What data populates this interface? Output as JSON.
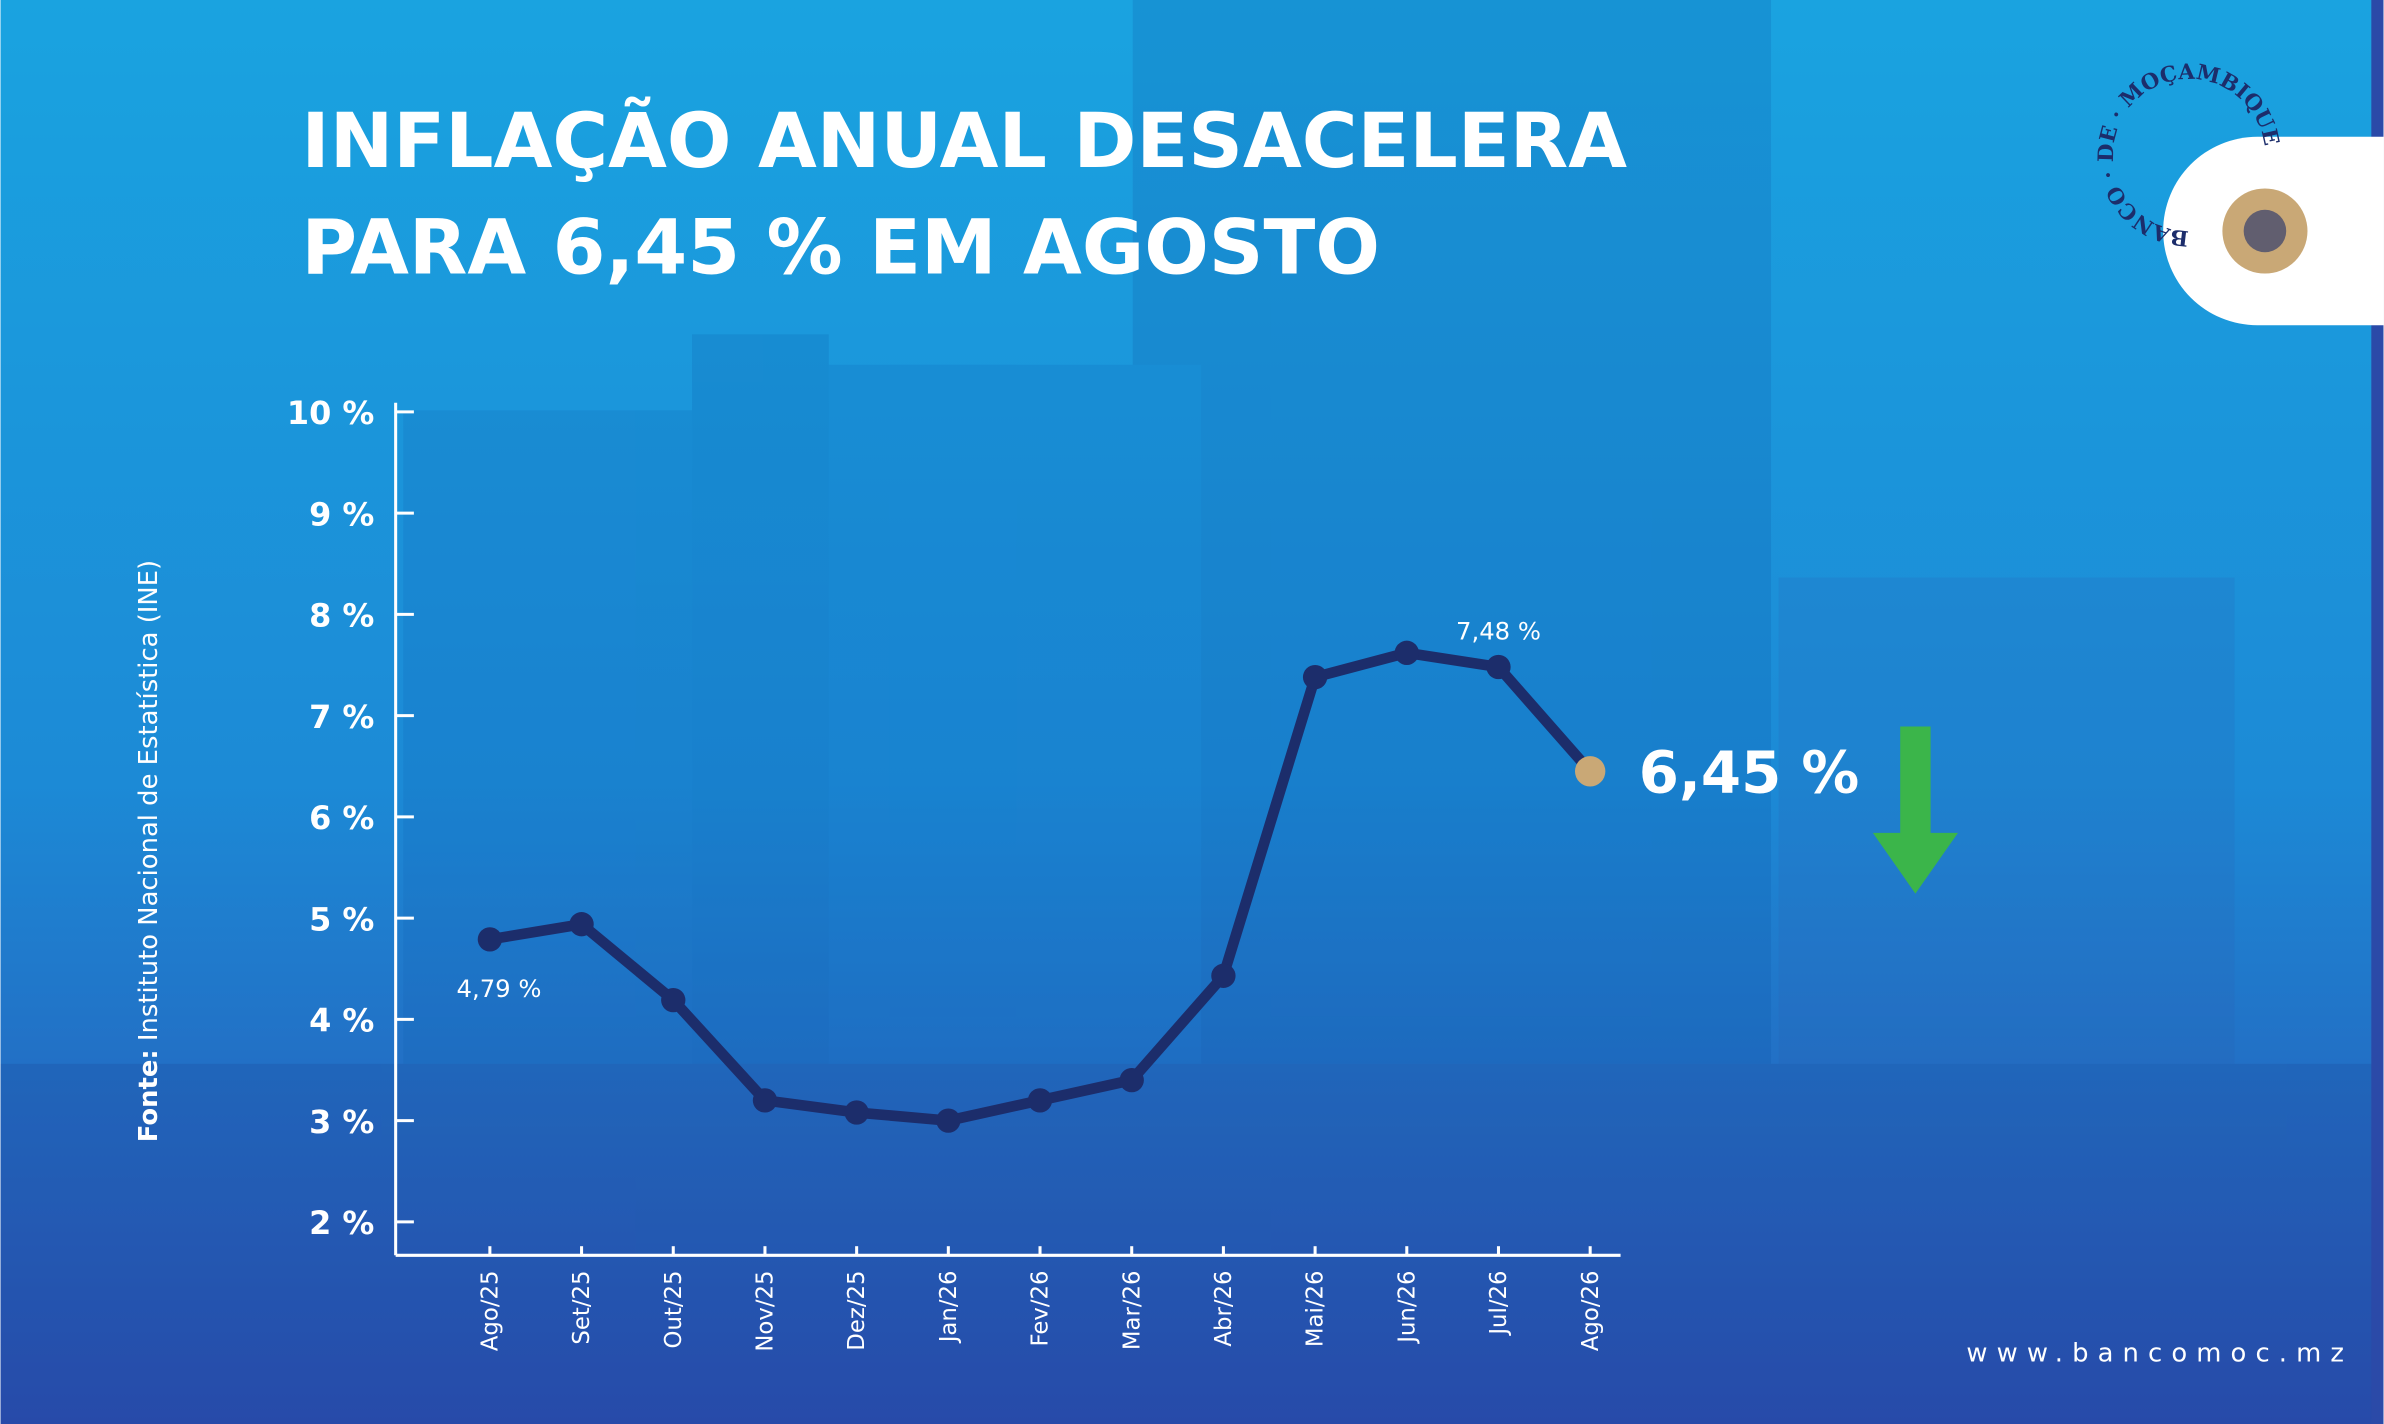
{
  "chart_data": {
    "type": "line",
    "title": [
      "INFLAÇÃO ANUAL DESACELERA",
      "PARA 6,45 % EM AGOSTO"
    ],
    "categories": [
      "Ago/25",
      "Set/25",
      "Out/25",
      "Nov/25",
      "Dez/25",
      "Jan/26",
      "Fev/26",
      "Mar/26",
      "Abr/26",
      "Mai/26",
      "Jun/26",
      "Jul/26",
      "Ago/26"
    ],
    "values": [
      4.79,
      4.94,
      4.19,
      3.2,
      3.08,
      3.0,
      3.2,
      3.4,
      4.43,
      7.38,
      7.62,
      7.48,
      6.45
    ],
    "value_labels": [
      "4,79 %",
      null,
      null,
      null,
      null,
      null,
      null,
      null,
      null,
      null,
      null,
      "7,48 %",
      "6,45 %"
    ],
    "color": "#1c2d6b",
    "highlight_color": "#c9a876",
    "ylim": [
      2,
      10
    ],
    "yticks": [
      {
        "value": 2,
        "label": "2 %"
      },
      {
        "value": 3,
        "label": "3 %"
      },
      {
        "value": 4,
        "label": "4 %"
      },
      {
        "value": 5,
        "label": "5 %"
      },
      {
        "value": 6,
        "label": "6 %"
      },
      {
        "value": 7,
        "label": "7 %"
      },
      {
        "value": 8,
        "label": "8 %"
      },
      {
        "value": 9,
        "label": "9 %"
      },
      {
        "value": 10,
        "label": "10 %"
      }
    ],
    "source_label": "Fonte:",
    "source": "Instituto Nacional de Estatística (INE)"
  },
  "logo": "BANCO · DE · MOÇAMBIQUE",
  "website": "www.bancomoc.mz"
}
